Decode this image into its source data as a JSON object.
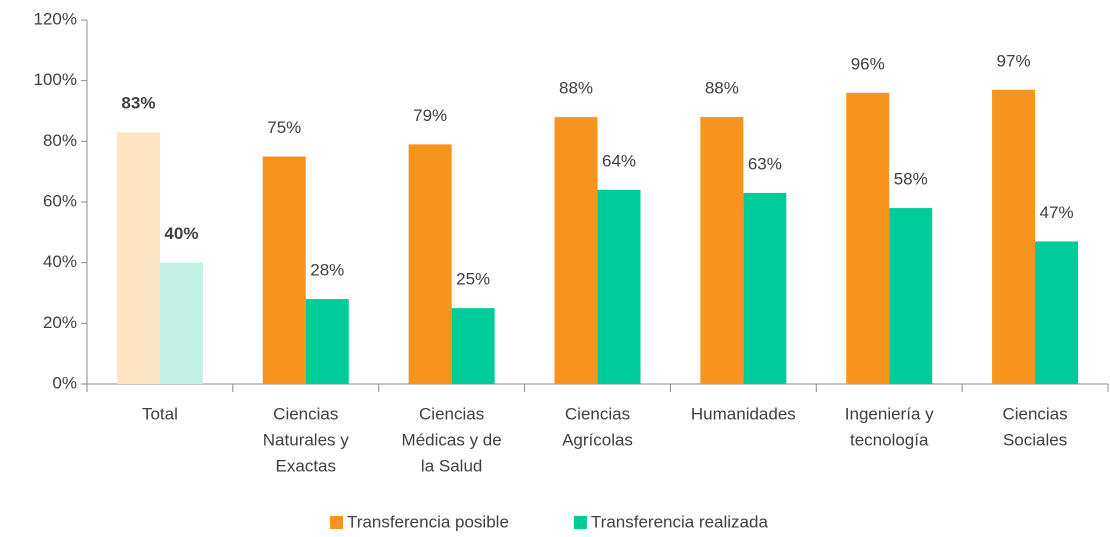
{
  "chart_data": {
    "type": "bar",
    "categories": [
      [
        "Total"
      ],
      [
        "Ciencias",
        "Naturales y",
        "Exactas"
      ],
      [
        "Ciencias",
        "Médicas y de",
        "la Salud"
      ],
      [
        "Ciencias",
        "Agrícolas"
      ],
      [
        "Humanidades"
      ],
      [
        "Ingeniería y",
        "tecnología"
      ],
      [
        "Ciencias",
        "Sociales"
      ]
    ],
    "series": [
      {
        "name": "Transferencia posible",
        "color": "#f7941d",
        "colors": [
          "#fde4c2",
          "#f7941d",
          "#f7941d",
          "#f7941d",
          "#f7941d",
          "#f7941d",
          "#f7941d"
        ],
        "values": [
          83,
          75,
          79,
          88,
          88,
          96,
          97
        ],
        "value_labels": [
          "83%",
          "75%",
          "79%",
          "88%",
          "88%",
          "96%",
          "97%"
        ],
        "label_bold": [
          true,
          false,
          false,
          false,
          false,
          false,
          false
        ]
      },
      {
        "name": "Transferencia realizada",
        "color": "#00cc99",
        "colors": [
          "#c2f2e5",
          "#00cc99",
          "#00cc99",
          "#00cc99",
          "#00cc99",
          "#00cc99",
          "#00cc99"
        ],
        "values": [
          40,
          28,
          25,
          64,
          63,
          58,
          47
        ],
        "value_labels": [
          "40%",
          "28%",
          "25%",
          "64%",
          "63%",
          "58%",
          "47%"
        ],
        "label_bold": [
          true,
          false,
          false,
          false,
          false,
          false,
          false
        ]
      }
    ],
    "ylim": [
      0,
      120
    ],
    "yticks": [
      {
        "value": 0,
        "label": "0%"
      },
      {
        "value": 20,
        "label": "20%"
      },
      {
        "value": 40,
        "label": "40%"
      },
      {
        "value": 60,
        "label": "60%"
      },
      {
        "value": 80,
        "label": "80%"
      },
      {
        "value": 100,
        "label": "100%"
      },
      {
        "value": 120,
        "label": "120%"
      }
    ],
    "grid": false,
    "legend": "bottom"
  }
}
